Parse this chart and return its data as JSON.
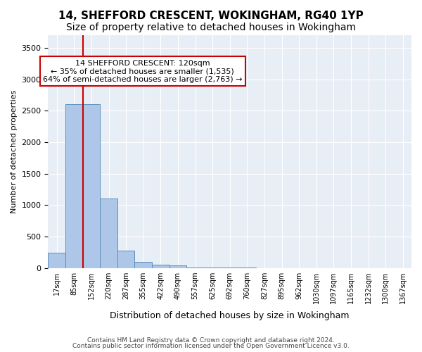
{
  "title": "14, SHEFFORD CRESCENT, WOKINGHAM, RG40 1YP",
  "subtitle": "Size of property relative to detached houses in Wokingham",
  "xlabel": "Distribution of detached houses by size in Wokingham",
  "ylabel": "Number of detached properties",
  "bins": [
    "17sqm",
    "85sqm",
    "152sqm",
    "220sqm",
    "287sqm",
    "355sqm",
    "422sqm",
    "490sqm",
    "557sqm",
    "625sqm",
    "692sqm",
    "760sqm",
    "827sqm",
    "895sqm",
    "962sqm",
    "1030sqm",
    "1097sqm",
    "1165sqm",
    "1232sqm",
    "1300sqm",
    "1367sqm"
  ],
  "values": [
    240,
    2600,
    2600,
    1100,
    275,
    100,
    55,
    35,
    5,
    2,
    1,
    1,
    0,
    0,
    0,
    0,
    0,
    0,
    0,
    0,
    0
  ],
  "bar_color": "#aec6e8",
  "bar_edge_color": "#5a8fbc",
  "vline_pos": 1.52,
  "vline_color": "#cc0000",
  "annotation_text": "14 SHEFFORD CRESCENT: 120sqm\n← 35% of detached houses are smaller (1,535)\n64% of semi-detached houses are larger (2,763) →",
  "annotation_box_color": "white",
  "annotation_box_edge_color": "#cc0000",
  "ylim": [
    0,
    3700
  ],
  "yticks": [
    0,
    500,
    1000,
    1500,
    2000,
    2500,
    3000,
    3500
  ],
  "footer1": "Contains HM Land Registry data © Crown copyright and database right 2024.",
  "footer2": "Contains public sector information licensed under the Open Government Licence v3.0.",
  "plot_background": "#e8eef6",
  "title_fontsize": 11,
  "subtitle_fontsize": 10
}
